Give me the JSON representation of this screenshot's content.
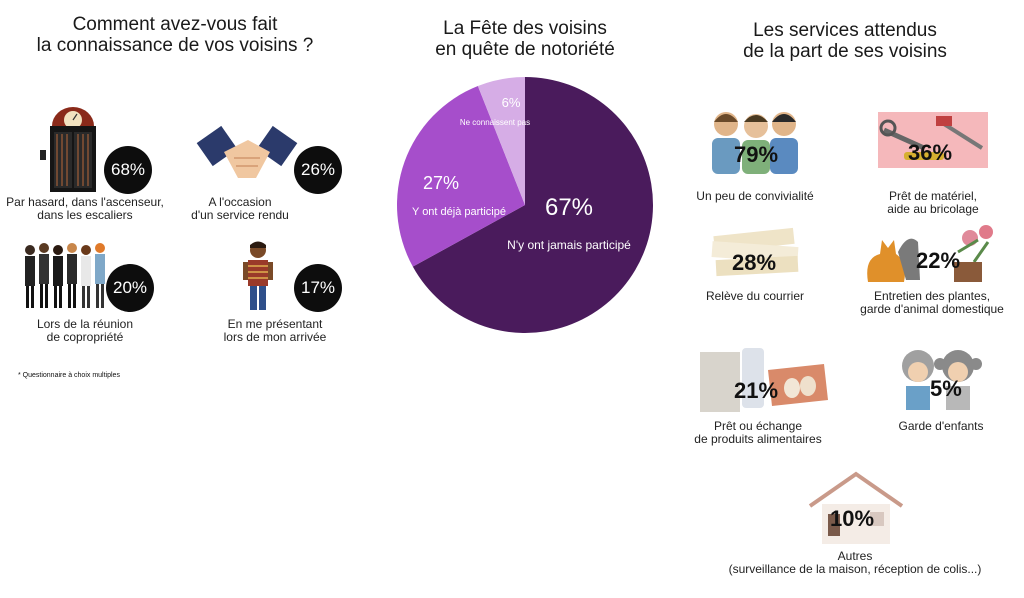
{
  "left": {
    "title": [
      "Comment avez-vous fait",
      "la connaissance de vos voisins ?"
    ],
    "items": [
      {
        "pct": "68%",
        "label": [
          "Par hasard, dans l'ascenseur,",
          "dans les escaliers"
        ]
      },
      {
        "pct": "26%",
        "label": [
          "A l'occasion",
          "d'un service rendu"
        ]
      },
      {
        "pct": "20%",
        "label": [
          "Lors de la réunion",
          "de copropriété"
        ]
      },
      {
        "pct": "17%",
        "label": [
          "En me présentant",
          "lors de mon arrivée"
        ]
      }
    ],
    "note": "* Questionnaire à choix multiples"
  },
  "middle": {
    "title": [
      "La Fête des voisins",
      "en quête de notoriété"
    ]
  },
  "chart_data": {
    "type": "pie",
    "slices": [
      {
        "label": "N'y ont jamais participé",
        "value": 67,
        "text": "67%",
        "color": "#4a1b5c"
      },
      {
        "label": "Y ont déjà participé",
        "value": 27,
        "text": "27%",
        "color": "#a64ecb"
      },
      {
        "label": "Ne connaissent pas",
        "value": 6,
        "text": "6%",
        "color": "#d6ade6"
      }
    ]
  },
  "right": {
    "title": [
      "Les services attendus",
      "de la part de ses voisins"
    ],
    "items": [
      {
        "pct": "79%",
        "label": [
          "Un peu de convivialité"
        ]
      },
      {
        "pct": "36%",
        "label": [
          "Prêt de matériel,",
          "aide au bricolage"
        ]
      },
      {
        "pct": "28%",
        "label": [
          "Relève du courrier"
        ]
      },
      {
        "pct": "22%",
        "label": [
          "Entretien des plantes,",
          "garde d'animal domestique"
        ]
      },
      {
        "pct": "21%",
        "label": [
          "Prêt ou échange",
          "de produits alimentaires"
        ]
      },
      {
        "pct": "5%",
        "label": [
          "Garde d'enfants"
        ]
      },
      {
        "pct": "10%",
        "label": [
          "Autres",
          "(surveillance de la maison, réception de colis...)"
        ]
      }
    ]
  }
}
